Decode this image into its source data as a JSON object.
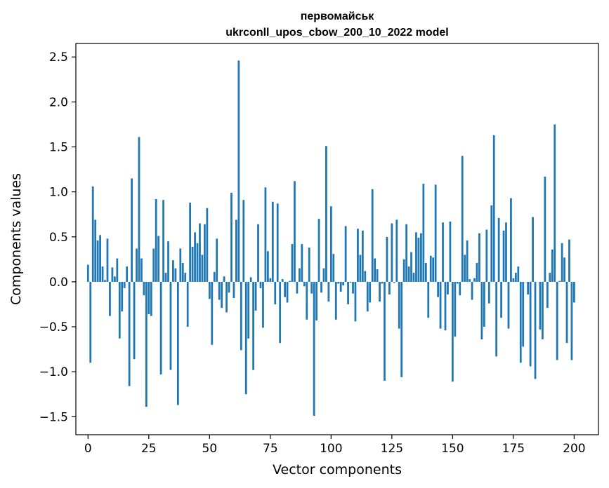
{
  "chart_data": {
    "type": "bar",
    "title_line1": "первомайськ",
    "title_line2": "ukrconll_upos_cbow_200_10_2022 model",
    "xlabel": "Vector components",
    "ylabel": "Components values",
    "xlim": [
      -5,
      210
    ],
    "ylim": [
      -1.7,
      2.65
    ],
    "x_ticks": [
      0,
      25,
      50,
      75,
      100,
      125,
      150,
      175,
      200
    ],
    "x_tick_labels": [
      "0",
      "25",
      "50",
      "75",
      "100",
      "125",
      "150",
      "175",
      "200"
    ],
    "y_ticks": [
      -1.5,
      -1.0,
      -0.5,
      0.0,
      0.5,
      1.0,
      1.5,
      2.0,
      2.5
    ],
    "y_tick_labels": [
      "−1.5",
      "−1.0",
      "−0.5",
      "0.0",
      "0.5",
      "1.0",
      "1.5",
      "2.0",
      "2.5"
    ],
    "bar_color": "#1f77b4",
    "values": [
      0.19,
      -0.9,
      1.06,
      0.69,
      0.46,
      0.52,
      0.17,
      0.02,
      0.48,
      -0.38,
      0.16,
      0.06,
      0.26,
      -0.63,
      -0.33,
      -0.07,
      0.17,
      -1.16,
      1.15,
      -0.86,
      0.37,
      1.61,
      0.26,
      -0.15,
      -1.39,
      -0.36,
      -0.38,
      0.37,
      0.92,
      0.51,
      -1.03,
      0.91,
      0.1,
      0.45,
      -0.98,
      0.24,
      0.15,
      -1.37,
      0.37,
      0.21,
      0.1,
      -0.5,
      0.88,
      0.39,
      0.55,
      0.43,
      0.65,
      0.3,
      0.64,
      0.82,
      -0.19,
      -0.7,
      0.11,
      0.48,
      -0.2,
      -0.29,
      0.06,
      -0.34,
      -0.12,
      0.99,
      -0.18,
      0.69,
      2.46,
      -0.76,
      0.91,
      -1.25,
      -0.63,
      0.05,
      -0.98,
      -0.32,
      0.64,
      -0.07,
      -0.51,
      1.05,
      0.34,
      0.04,
      0.89,
      -0.25,
      0.87,
      -0.68,
      0.03,
      -0.17,
      -0.23,
      0.01,
      0.42,
      1.12,
      -0.13,
      0.15,
      0.42,
      -0.05,
      -0.42,
      0.38,
      -0.13,
      -1.49,
      -0.43,
      0.7,
      -0.12,
      0.15,
      1.51,
      -0.22,
      0.84,
      0.31,
      -0.42,
      -0.02,
      -0.11,
      -0.04,
      0.62,
      -0.25,
      -0.01,
      -0.13,
      -0.44,
      0.59,
      0.3,
      0.57,
      0.12,
      -0.33,
      -0.23,
      1.03,
      0.26,
      0.14,
      -0.22,
      -0.02,
      -1.1,
      0.5,
      -0.14,
      0.65,
      -0.01,
      0.69,
      -0.52,
      -1.06,
      0.25,
      0.64,
      0.17,
      0.33,
      0.1,
      0.55,
      0.49,
      0.54,
      1.09,
      0.21,
      -0.4,
      0.29,
      0.27,
      1.08,
      -0.17,
      -0.52,
      0.66,
      -0.54,
      -0.14,
      0.67,
      -1.11,
      -0.61,
      -0.02,
      -0.15,
      1.4,
      0.3,
      0.46,
      0.03,
      -0.2,
      0.04,
      0.21,
      0.54,
      -0.64,
      -0.5,
      0.58,
      -0.24,
      0.85,
      1.63,
      -0.83,
      0.71,
      -0.4,
      0.57,
      0.66,
      -0.52,
      0.93,
      0.04,
      0.1,
      0.17,
      -0.9,
      -0.72,
      0.0,
      -0.14,
      -0.94,
      0.72,
      -1.08,
      0.0,
      -0.53,
      -0.64,
      1.17,
      -0.29,
      0.1,
      0.36,
      1.75,
      -0.87,
      0.01,
      0.43,
      0.27,
      -0.68,
      0.47,
      -0.87,
      -0.23
    ]
  }
}
